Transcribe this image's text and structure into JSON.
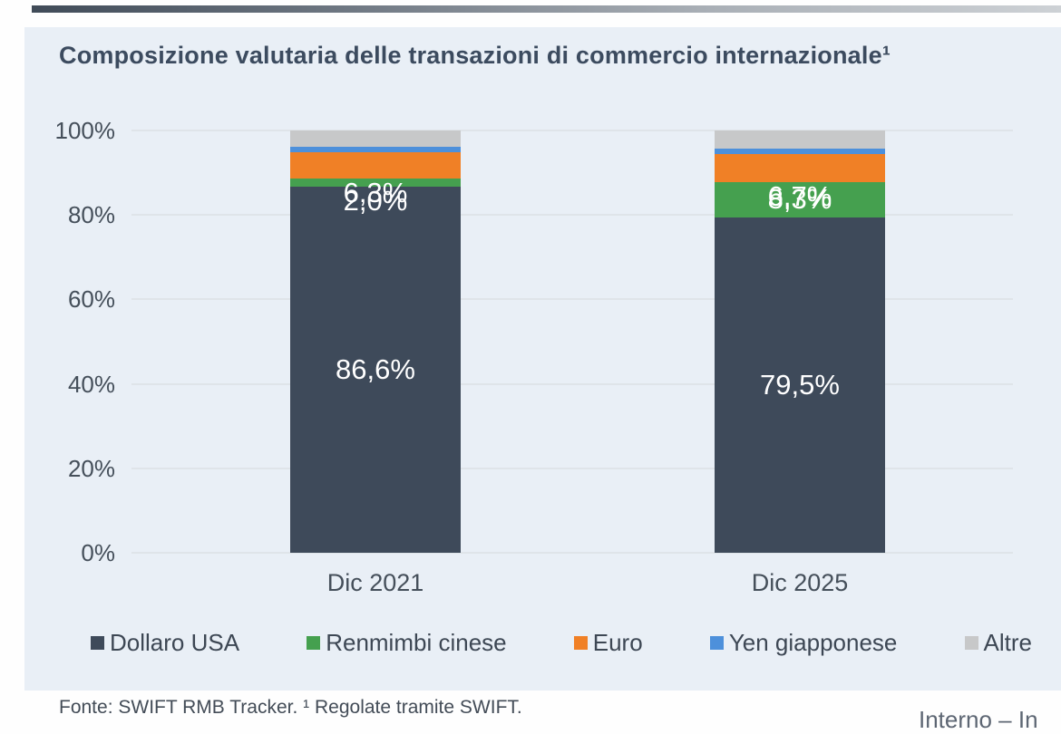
{
  "page": {
    "footer_source": "Fonte: SWIFT RMB Tracker. ¹ Regolate tramite SWIFT.",
    "watermark": "Interno – In"
  },
  "chart_data": {
    "type": "bar",
    "stacked": true,
    "title": "Composizione valutaria delle transazioni di commercio internazionale¹",
    "categories": [
      "Dic 2021",
      "Dic 2025"
    ],
    "series": [
      {
        "name": "Dollaro USA",
        "color": "#3e4a5a",
        "values": [
          86.6,
          79.5
        ],
        "labels": [
          "86,6%",
          "79,5%"
        ]
      },
      {
        "name": "Renmimbi cinese",
        "color": "#45a04f",
        "values": [
          2.0,
          8.3
        ],
        "labels": [
          "2,0%",
          "8,3%"
        ]
      },
      {
        "name": "Euro",
        "color": "#f08026",
        "values": [
          6.3,
          6.7
        ],
        "labels": [
          "6,3%",
          "6,7%"
        ]
      },
      {
        "name": "Yen giapponese",
        "color": "#4d90db",
        "values": [
          1.3,
          1.2
        ],
        "labels": [
          null,
          null
        ]
      },
      {
        "name": "Altre",
        "color": "#c7c8c9",
        "values": [
          3.8,
          4.3
        ],
        "labels": [
          null,
          null
        ]
      }
    ],
    "ylabel": "",
    "ylim": [
      0,
      100
    ],
    "y_ticks": [
      "0%",
      "20%",
      "40%",
      "60%",
      "80%",
      "100%"
    ],
    "grid": true,
    "legend_position": "bottom"
  }
}
